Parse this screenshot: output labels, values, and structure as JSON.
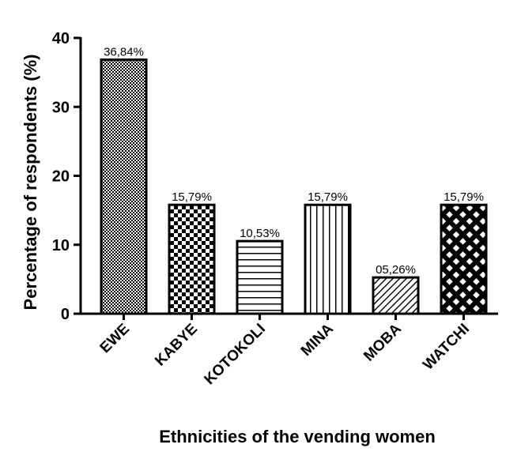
{
  "chart_data": {
    "type": "bar",
    "categories": [
      "EWE",
      "KABYE",
      "KOTOKOLI",
      "MINA",
      "MOBA",
      "WATCHI"
    ],
    "values": [
      36.84,
      15.79,
      10.53,
      15.79,
      5.26,
      15.79
    ],
    "data_labels": [
      "36,84%",
      "15,79%",
      "10,53%",
      "15,79%",
      "05,26%",
      "15,79%"
    ],
    "bar_patterns": [
      "dense-checker",
      "checker",
      "horizontal-lines",
      "vertical-lines",
      "diagonal-lines",
      "crosshatch"
    ],
    "xlabel": "Ethnicities of the vending women",
    "ylabel": "Percentage of respondents (%)",
    "ylim": [
      0,
      40
    ],
    "yticks": [
      0,
      10,
      20,
      30,
      40
    ],
    "ytick_labels": [
      "0",
      "10",
      "20",
      "30",
      "40"
    ],
    "grid": false,
    "legend": "none",
    "colors": {
      "bar_stroke": "#000000",
      "pattern_ink": "#000000",
      "background": "#ffffff"
    }
  }
}
